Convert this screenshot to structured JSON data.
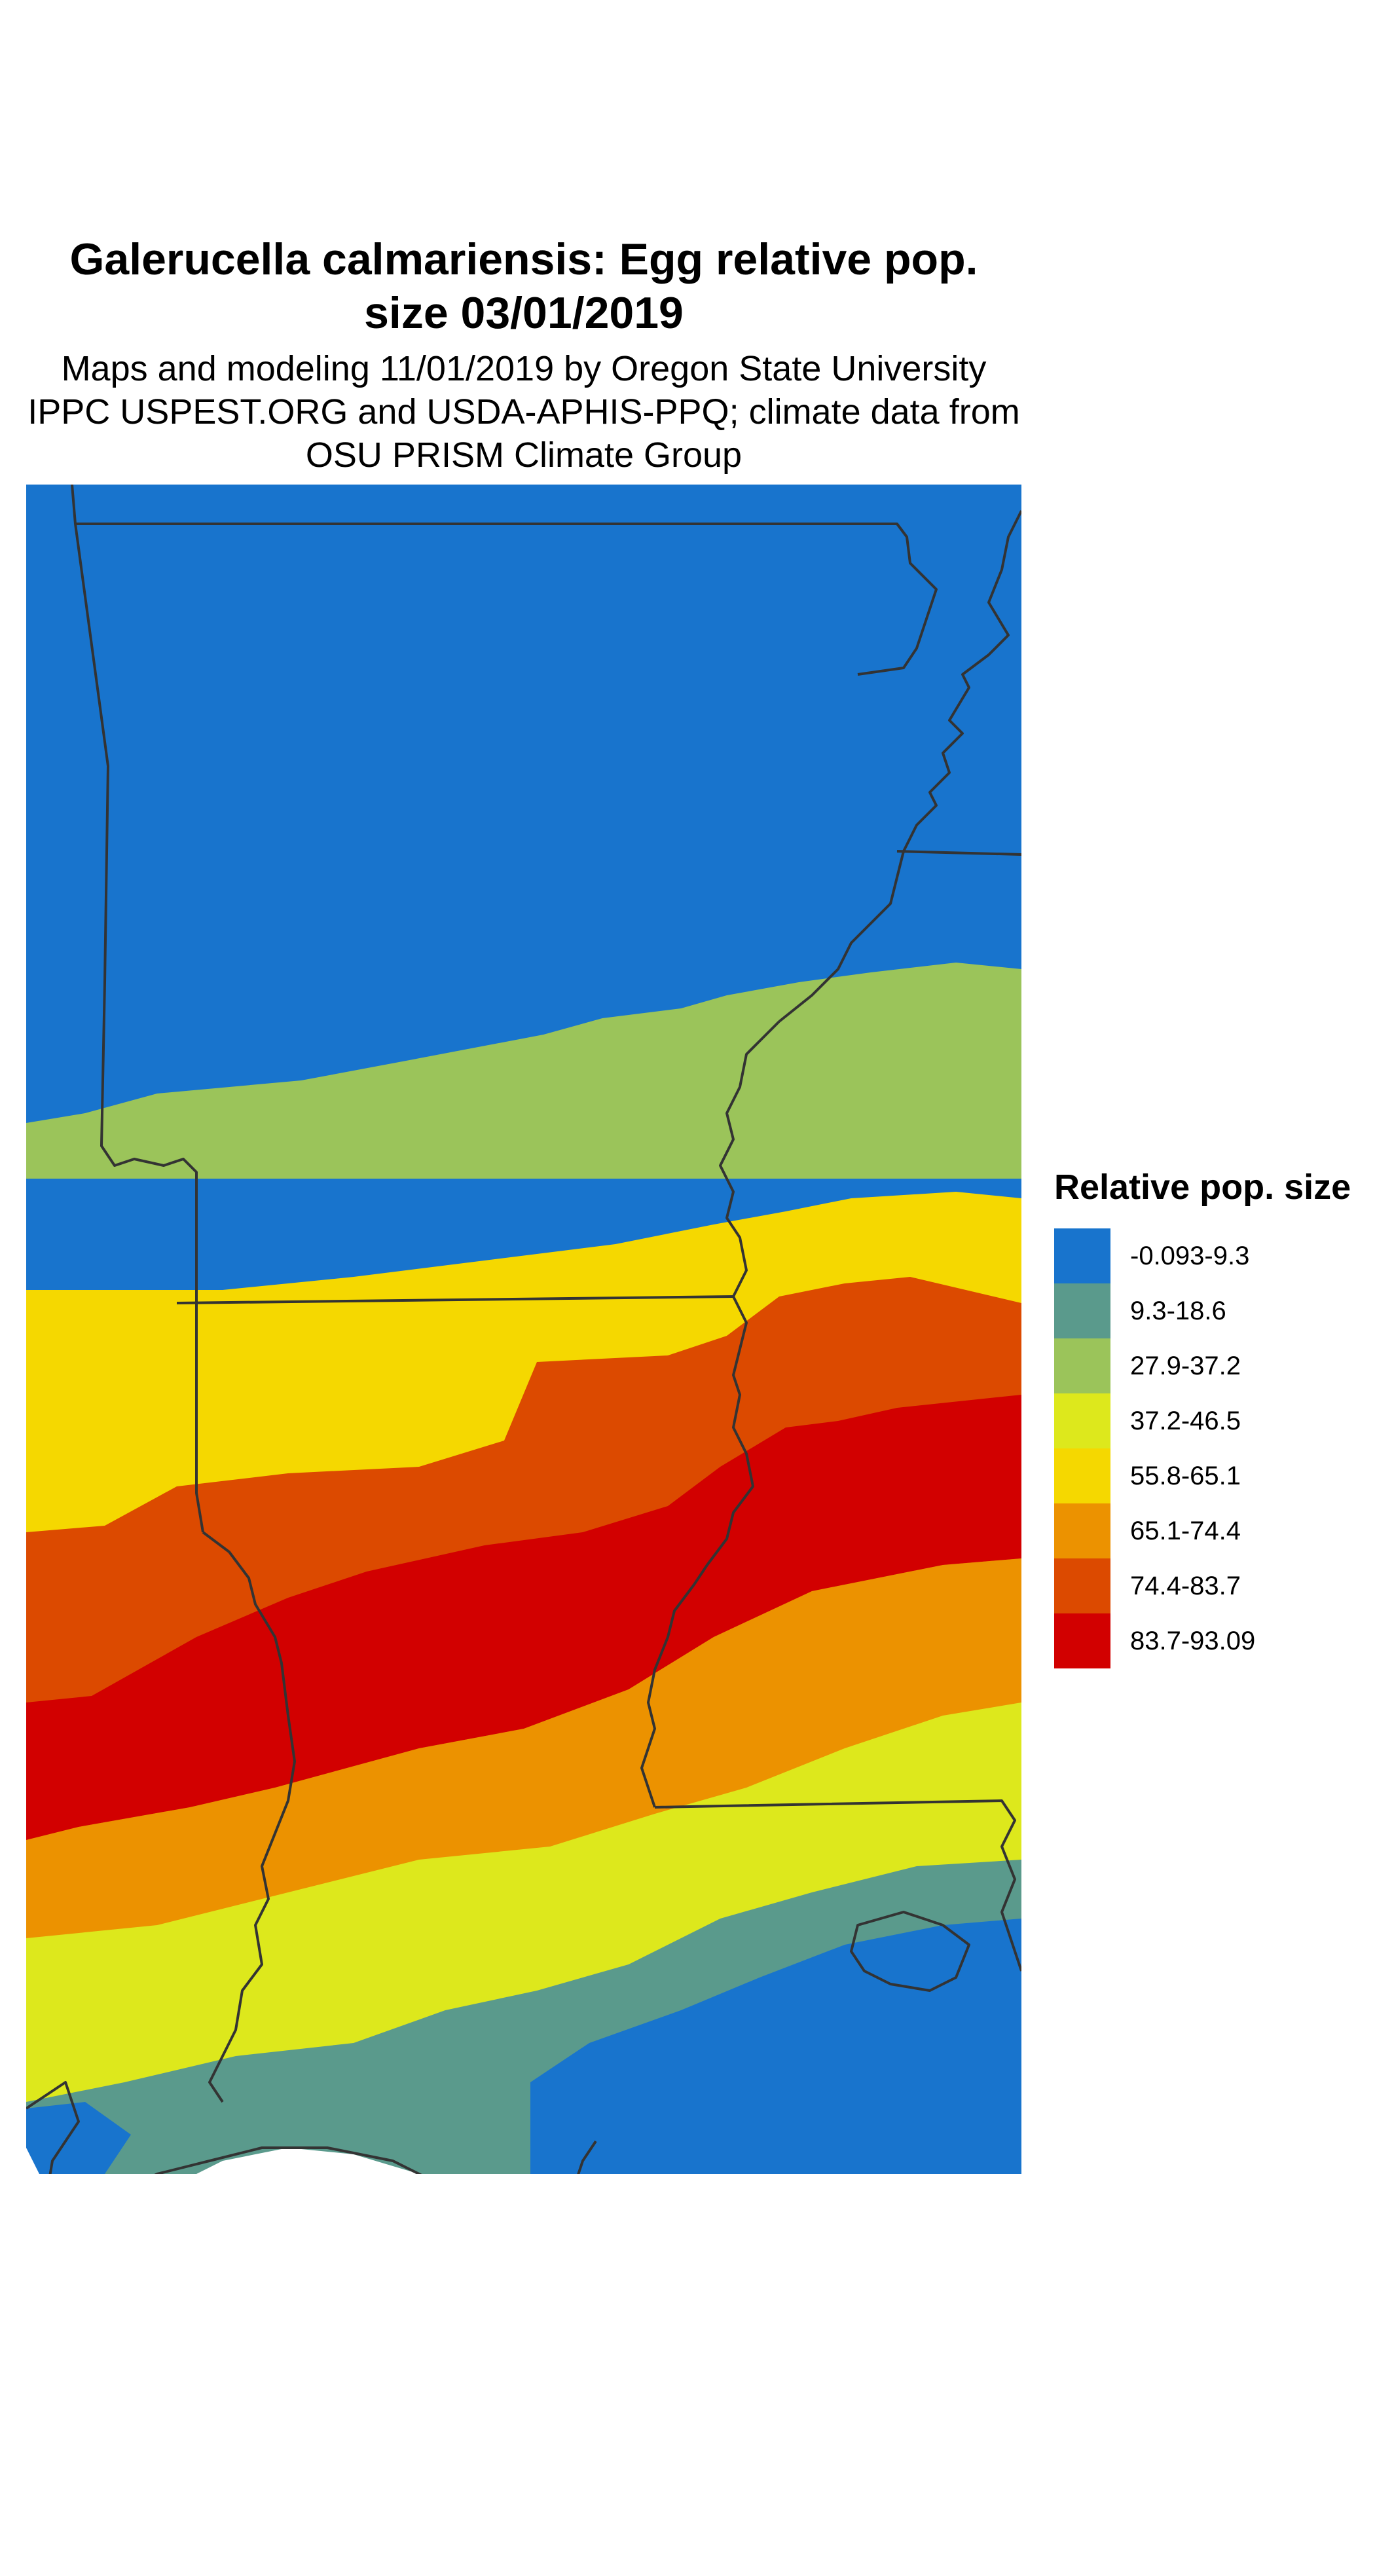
{
  "title": {
    "line1": "Galerucella calmariensis: Egg relative pop.",
    "line2": "size 03/01/2019"
  },
  "subtitle": {
    "line1": "Maps and modeling 11/01/2019 by Oregon State University",
    "line2": "IPPC USPEST.ORG and USDA-APHIS-PPQ; climate data from",
    "line3": "OSU PRISM Climate Group"
  },
  "legend": {
    "title": "Relative pop. size",
    "items": [
      {
        "label": "-0.093-9.3",
        "color": "#1874cd"
      },
      {
        "label": "9.3-18.6",
        "color": "#5a9a8c"
      },
      {
        "label": "27.9-37.2",
        "color": "#9bc45a"
      },
      {
        "label": "37.2-46.5",
        "color": "#dde81c"
      },
      {
        "label": "55.8-65.1",
        "color": "#f5d800"
      },
      {
        "label": "65.1-74.4",
        "color": "#ec9200"
      },
      {
        "label": "74.4-83.7",
        "color": "#dc4a00"
      },
      {
        "label": "83.7-93.09",
        "color": "#d20000"
      }
    ]
  },
  "map": {
    "boundary_color": "#333333"
  }
}
